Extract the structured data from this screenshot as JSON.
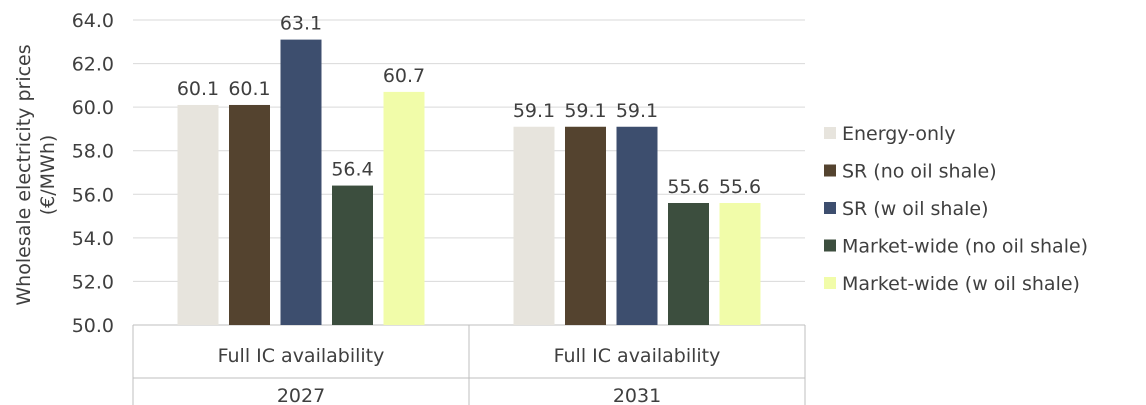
{
  "chart_data": {
    "type": "bar",
    "ylabel_line1": "Wholesale electricity prices",
    "ylabel_line2": "(€/MWh)",
    "ylim": [
      50.0,
      64.0
    ],
    "yticks": [
      "50.0",
      "52.0",
      "54.0",
      "56.0",
      "58.0",
      "60.0",
      "62.0",
      "64.0"
    ],
    "grid": true,
    "legend_position": "right",
    "groups": [
      {
        "label": "Full IC availability",
        "year": "2027"
      },
      {
        "label": "Full IC availability",
        "year": "2031"
      }
    ],
    "series": [
      {
        "name": "Energy-only",
        "color": "#e7e4dd",
        "values": [
          60.1,
          59.1
        ],
        "labels": [
          "60.1",
          "59.1"
        ]
      },
      {
        "name": "SR (no oil shale)",
        "color": "#54432f",
        "values": [
          60.1,
          59.1
        ],
        "labels": [
          "60.1",
          "59.1"
        ]
      },
      {
        "name": "SR (w oil shale)",
        "color": "#3d4e6e",
        "values": [
          63.1,
          59.1
        ],
        "labels": [
          "63.1",
          "59.1"
        ]
      },
      {
        "name": "Market-wide (no oil shale)",
        "color": "#3c4e3e",
        "values": [
          56.4,
          55.6
        ],
        "labels": [
          "56.4",
          "55.6"
        ]
      },
      {
        "name": "Market-wide (w oil shale)",
        "color": "#f1fca9",
        "values": [
          60.7,
          55.6
        ],
        "labels": [
          "60.7",
          "55.6"
        ]
      }
    ]
  }
}
